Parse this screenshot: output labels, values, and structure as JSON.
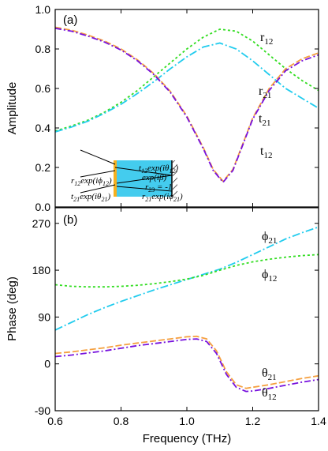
{
  "chart_data": [
    {
      "panel": "(a)",
      "type": "line",
      "xlabel": "",
      "ylabel": "Amplitude",
      "xlim": [
        0.6,
        1.4
      ],
      "ylim": [
        0.0,
        1.0
      ],
      "xticks": [
        "0.6",
        "0.8",
        "1.0",
        "1.2",
        "1.4"
      ],
      "yticks": [
        "0.0",
        "0.2",
        "0.4",
        "0.6",
        "0.8",
        "1.0"
      ],
      "series": [
        {
          "name": "r12",
          "color": "#33dd22",
          "dash": "3,3",
          "x": [
            0.6,
            0.65,
            0.7,
            0.75,
            0.8,
            0.85,
            0.9,
            0.95,
            1.0,
            1.05,
            1.1,
            1.15,
            1.2,
            1.25,
            1.3,
            1.35,
            1.4
          ],
          "y": [
            0.385,
            0.41,
            0.44,
            0.48,
            0.53,
            0.59,
            0.66,
            0.73,
            0.8,
            0.86,
            0.9,
            0.89,
            0.84,
            0.77,
            0.7,
            0.64,
            0.59
          ]
        },
        {
          "name": "r21",
          "color": "#22ccee",
          "dash": "10,3,2,3",
          "x": [
            0.6,
            0.65,
            0.7,
            0.75,
            0.8,
            0.85,
            0.9,
            0.95,
            1.0,
            1.05,
            1.1,
            1.15,
            1.2,
            1.25,
            1.3,
            1.35,
            1.4
          ],
          "y": [
            0.38,
            0.405,
            0.435,
            0.475,
            0.52,
            0.575,
            0.635,
            0.7,
            0.76,
            0.81,
            0.83,
            0.8,
            0.74,
            0.67,
            0.6,
            0.55,
            0.5
          ]
        },
        {
          "name": "t21",
          "color": "#f5a040",
          "dash": "8,3",
          "x": [
            0.6,
            0.65,
            0.7,
            0.75,
            0.8,
            0.85,
            0.9,
            0.95,
            1.0,
            1.05,
            1.08,
            1.11,
            1.14,
            1.17,
            1.2,
            1.25,
            1.3,
            1.35,
            1.4
          ],
          "y": [
            0.91,
            0.895,
            0.87,
            0.84,
            0.8,
            0.745,
            0.675,
            0.585,
            0.46,
            0.3,
            0.19,
            0.13,
            0.19,
            0.32,
            0.45,
            0.6,
            0.7,
            0.75,
            0.78
          ]
        },
        {
          "name": "t12",
          "color": "#7711dd",
          "dash": "8,3,2,3",
          "x": [
            0.6,
            0.65,
            0.7,
            0.75,
            0.8,
            0.85,
            0.9,
            0.95,
            1.0,
            1.05,
            1.08,
            1.11,
            1.14,
            1.17,
            1.2,
            1.25,
            1.3,
            1.35,
            1.4
          ],
          "y": [
            0.905,
            0.89,
            0.865,
            0.835,
            0.795,
            0.74,
            0.67,
            0.58,
            0.455,
            0.295,
            0.185,
            0.125,
            0.185,
            0.315,
            0.445,
            0.59,
            0.69,
            0.74,
            0.77
          ]
        }
      ],
      "curve_labels": [
        {
          "series": "r12",
          "base": "r",
          "sub": "12"
        },
        {
          "series": "r21",
          "base": "r",
          "sub": "21"
        },
        {
          "series": "t21",
          "base": "t",
          "sub": "21"
        },
        {
          "series": "t12",
          "base": "t",
          "sub": "12"
        }
      ]
    },
    {
      "panel": "(b)",
      "type": "line",
      "xlabel": "Frequency (THz)",
      "ylabel": "Phase (deg)",
      "xlim": [
        0.6,
        1.4
      ],
      "ylim": [
        -90,
        300
      ],
      "xticks": [
        "0.6",
        "0.8",
        "1.0",
        "1.2",
        "1.4"
      ],
      "yticks": [
        "-90",
        "0",
        "90",
        "180",
        "270"
      ],
      "series": [
        {
          "name": "phi21",
          "color": "#22ccee",
          "dash": "10,3,2,3",
          "x": [
            0.6,
            0.65,
            0.7,
            0.75,
            0.8,
            0.85,
            0.9,
            0.95,
            1.0,
            1.05,
            1.1,
            1.15,
            1.2,
            1.25,
            1.3,
            1.35,
            1.4
          ],
          "y": [
            65,
            80,
            95,
            108,
            120,
            131,
            142,
            152,
            162,
            172,
            182,
            195,
            210,
            225,
            240,
            252,
            263
          ]
        },
        {
          "name": "phi12",
          "color": "#33dd22",
          "dash": "3,3",
          "x": [
            0.6,
            0.65,
            0.7,
            0.75,
            0.8,
            0.85,
            0.9,
            0.95,
            1.0,
            1.05,
            1.1,
            1.15,
            1.2,
            1.25,
            1.3,
            1.35,
            1.4
          ],
          "y": [
            152,
            149,
            148,
            148,
            149,
            151,
            154,
            158,
            163,
            170,
            180,
            189,
            196,
            201,
            205,
            208,
            210
          ]
        },
        {
          "name": "theta21",
          "color": "#f5a040",
          "dash": "8,3",
          "x": [
            0.6,
            0.65,
            0.7,
            0.75,
            0.8,
            0.85,
            0.9,
            0.95,
            1.0,
            1.03,
            1.06,
            1.09,
            1.12,
            1.15,
            1.18,
            1.2,
            1.25,
            1.3,
            1.35,
            1.4
          ],
          "y": [
            20,
            23,
            27,
            31,
            36,
            40,
            44,
            48,
            52,
            53,
            48,
            25,
            -15,
            -40,
            -47,
            -45,
            -40,
            -34,
            -28,
            -23
          ]
        },
        {
          "name": "theta12",
          "color": "#7711dd",
          "dash": "8,3,2,3",
          "x": [
            0.6,
            0.65,
            0.7,
            0.75,
            0.8,
            0.85,
            0.9,
            0.95,
            1.0,
            1.03,
            1.06,
            1.09,
            1.12,
            1.15,
            1.18,
            1.2,
            1.25,
            1.3,
            1.35,
            1.4
          ],
          "y": [
            14,
            17,
            21,
            25,
            30,
            35,
            39,
            43,
            47,
            48,
            43,
            20,
            -20,
            -45,
            -53,
            -52,
            -47,
            -41,
            -35,
            -30
          ]
        }
      ],
      "curve_labels": [
        {
          "series": "phi21",
          "base": "ϕ",
          "sub": "21"
        },
        {
          "series": "phi12",
          "base": "ϕ",
          "sub": "12"
        },
        {
          "series": "theta21",
          "base": "θ",
          "sub": "21"
        },
        {
          "series": "theta12",
          "base": "θ",
          "sub": "12"
        }
      ]
    }
  ],
  "inset": {
    "labels": [
      {
        "base": "t",
        "sub": "12",
        "rest": "exp(iθ",
        "sub2": "12",
        "close": ")"
      },
      {
        "base": "",
        "sub": "",
        "rest": "exp(iβ)",
        "sub2": "",
        "close": ""
      },
      {
        "base": "r",
        "sub": "12",
        "rest": "exp(iϕ",
        "sub2": "12",
        "close": ")"
      },
      {
        "base": "r",
        "sub": "23",
        "rest": " = -1",
        "sub2": "",
        "close": ""
      },
      {
        "base": "t",
        "sub": "21",
        "rest": "exp(iθ",
        "sub2": "21",
        "close": ")"
      },
      {
        "base": "r",
        "sub": "21",
        "rest": "exp(iϕ",
        "sub2": "21",
        "close": ")"
      }
    ],
    "colors": {
      "slab": "#44ccee",
      "metasurface": "#f5b020",
      "mirror": "#000000"
    }
  }
}
